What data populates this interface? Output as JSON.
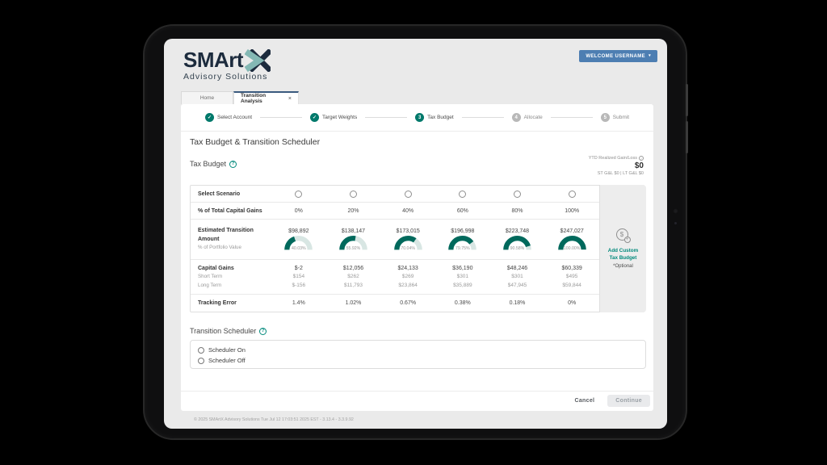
{
  "header": {
    "logo_title": "SMArt",
    "logo_subtitle": "Advisory Solutions",
    "welcome_button_label": "WELCOME USERNAME"
  },
  "tabs": [
    {
      "label": "Home",
      "active": false,
      "closable": false
    },
    {
      "label": "Transition Analysis",
      "active": true,
      "closable": true
    }
  ],
  "stepper": [
    {
      "label": "Select Account",
      "state": "complete"
    },
    {
      "label": "Target Weights",
      "state": "complete"
    },
    {
      "label": "Tax Budget",
      "state": "current",
      "number": 3
    },
    {
      "label": "Allocate",
      "state": "upcoming",
      "number": 4
    },
    {
      "label": "Submit",
      "state": "upcoming",
      "number": 5
    }
  ],
  "page": {
    "title": "Tax Budget & Transition Scheduler"
  },
  "tax_budget": {
    "section_label": "Tax Budget",
    "ytd": {
      "label": "YTD Realized Gain/Loss",
      "value": "$0",
      "detail": "ST G&L $0 | LT G&L $0"
    },
    "row_labels": {
      "select_scenario": "Select Scenario",
      "pct_total": "% of Total Capital Gains",
      "estimated": "Estimated Transition Amount",
      "portfolio": "% of Portfolio Value",
      "capital_gains": "Capital Gains",
      "short_term": "Short Term",
      "long_term": "Long Term",
      "tracking_error": "Tracking Error"
    },
    "selected_scenario": null,
    "scenarios": [
      {
        "pct_total_capital_gains": "0%",
        "estimated_amount": "$98,892",
        "portfolio_pct": 40.03,
        "portfolio_pct_label": "40.03%",
        "capital_gains": "$-2",
        "short_term": "$154",
        "long_term": "$-156",
        "tracking_error": "1.4%"
      },
      {
        "pct_total_capital_gains": "20%",
        "estimated_amount": "$138,147",
        "portfolio_pct": 55.92,
        "portfolio_pct_label": "55.92%",
        "capital_gains": "$12,056",
        "short_term": "$262",
        "long_term": "$11,793",
        "tracking_error": "1.02%"
      },
      {
        "pct_total_capital_gains": "40%",
        "estimated_amount": "$173,015",
        "portfolio_pct": 70.04,
        "portfolio_pct_label": "70.04%",
        "capital_gains": "$24,133",
        "short_term": "$269",
        "long_term": "$23,864",
        "tracking_error": "0.67%"
      },
      {
        "pct_total_capital_gains": "60%",
        "estimated_amount": "$196,998",
        "portfolio_pct": 79.75,
        "portfolio_pct_label": "79.75%",
        "capital_gains": "$36,190",
        "short_term": "$301",
        "long_term": "$35,889",
        "tracking_error": "0.38%"
      },
      {
        "pct_total_capital_gains": "80%",
        "estimated_amount": "$223,748",
        "portfolio_pct": 90.58,
        "portfolio_pct_label": "90.58%",
        "capital_gains": "$48,246",
        "short_term": "$301",
        "long_term": "$47,945",
        "tracking_error": "0.18%"
      },
      {
        "pct_total_capital_gains": "100%",
        "estimated_amount": "$247,027",
        "portfolio_pct": 100.0,
        "portfolio_pct_label": "100.00%",
        "capital_gains": "$60,339",
        "short_term": "$495",
        "long_term": "$59,844",
        "tracking_error": "0%"
      }
    ],
    "add_custom": {
      "line1": "Add Custom",
      "line2": "Tax Budget",
      "optional": "*Optional"
    }
  },
  "scheduler": {
    "section_label": "Transition Scheduler",
    "options": [
      "Scheduler On",
      "Scheduler Off"
    ],
    "selected": null
  },
  "footer_buttons": {
    "cancel": "Cancel",
    "continue": "Continue"
  },
  "footer_text": "© 2025 SMArtX Advisory Solutions  Tue Jul 12 17:03:51 2025 EST - 3.13.4 - 3.3.9.92",
  "colors": {
    "stepper_green": "#00796b",
    "gauge_green": "#00695c",
    "gauge_track": "#d8e6e3",
    "welcome_blue": "#4d7eb2",
    "link_teal": "#00897b",
    "logo_navy": "#1c2b3d",
    "logo_teal": "#84b8b4",
    "active_tab_border": "#3a5a7e"
  }
}
